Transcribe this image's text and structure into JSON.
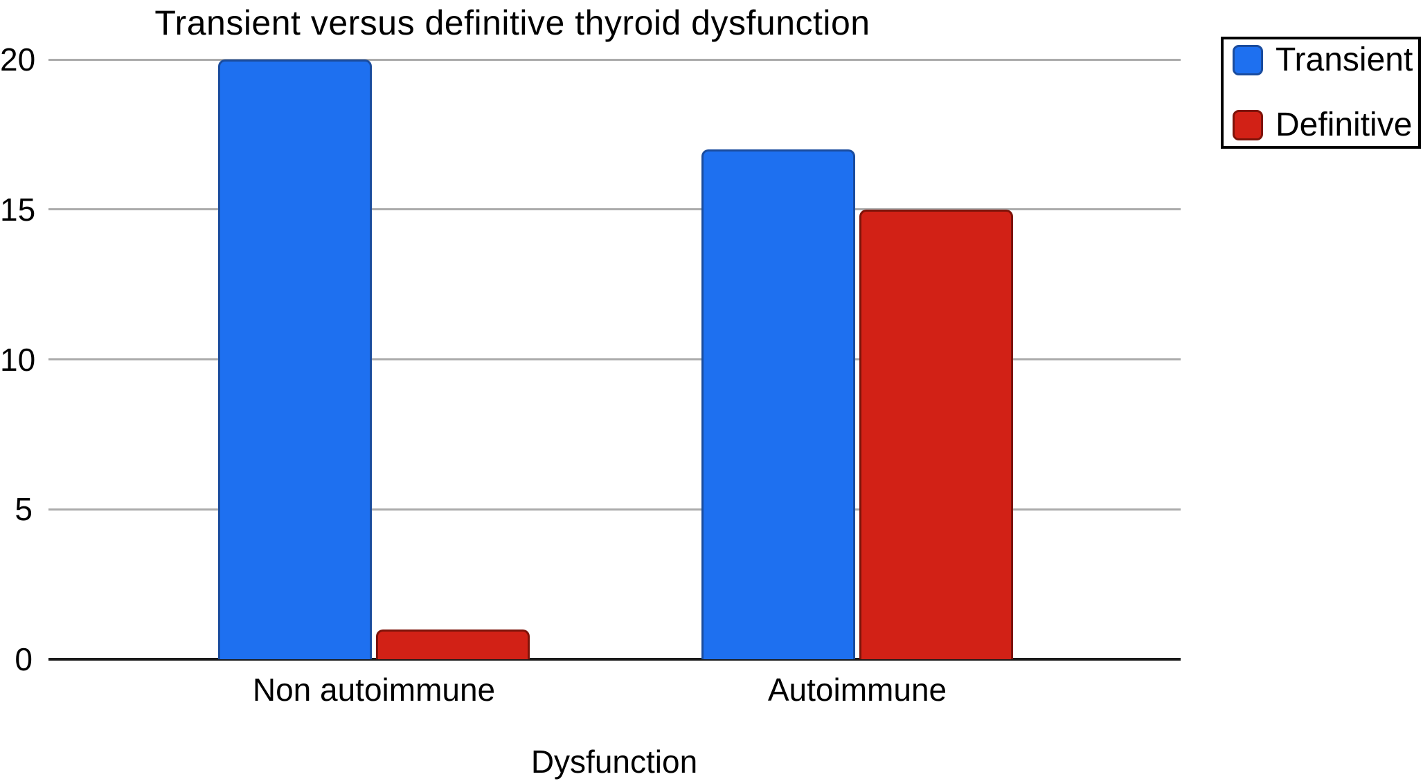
{
  "chart_data": {
    "type": "bar",
    "title": "Transient versus definitive thyroid dysfunction",
    "xlabel": "Dysfunction",
    "ylabel": "",
    "categories": [
      "Non autoimmune",
      "Autoimmune"
    ],
    "series": [
      {
        "name": "Transient",
        "values": [
          20,
          17
        ],
        "fill": "#1E70F0",
        "border": "#1A4C9E"
      },
      {
        "name": "Definitive",
        "values": [
          1,
          15
        ],
        "fill": "#D22116",
        "border": "#7E1309"
      }
    ],
    "ylim": [
      0,
      20
    ],
    "yticks": [
      0,
      5,
      10,
      15,
      20
    ],
    "grid": true,
    "legend_position": "top-right",
    "colors": {
      "gridline": "#ABABAB",
      "axis": "#1A1A1A",
      "text": "#000000",
      "background": "#FFFFFF"
    }
  }
}
